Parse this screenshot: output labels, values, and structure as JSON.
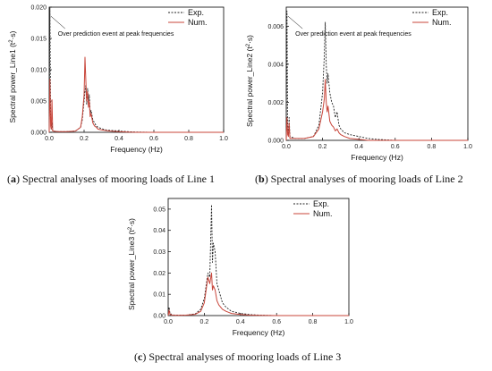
{
  "chart_data": [
    {
      "type": "line",
      "panel": "a",
      "caption_letter": "a",
      "caption_text": "Spectral analyses of mooring loads of Line 1",
      "xlabel": "Frequency (Hz)",
      "ylabel_main": "Spectral power_Line1 (t",
      "ylabel_unit": "·s)",
      "xlim": [
        0.0,
        1.0
      ],
      "ylim": [
        0.0,
        0.02
      ],
      "xticks": [
        0.0,
        0.2,
        0.4,
        0.6,
        0.8,
        1.0
      ],
      "xtick_labels": [
        "0.0",
        "0.2",
        "0.4",
        "0.6",
        "0.8",
        "1.0"
      ],
      "yticks": [
        0.0,
        0.005,
        0.01,
        0.015,
        0.02
      ],
      "ytick_labels": [
        "0.000",
        "0.005",
        "0.010",
        "0.015",
        "0.020"
      ],
      "legend_position": "top-right",
      "annotation": "Over prediction event at peak frequencies",
      "series": [
        {
          "name": "Exp.",
          "color": "#222222",
          "style": "dotted",
          "x": [
            0.0,
            0.004,
            0.008,
            0.012,
            0.016,
            0.02,
            0.05,
            0.1,
            0.15,
            0.18,
            0.19,
            0.2,
            0.205,
            0.21,
            0.215,
            0.22,
            0.225,
            0.23,
            0.235,
            0.24,
            0.25,
            0.26,
            0.27,
            0.28,
            0.3,
            0.32,
            0.35,
            0.4,
            0.45,
            0.5,
            0.6,
            1.0
          ],
          "y": [
            0.0,
            0.02,
            0.002,
            0.0005,
            0.0015,
            0.0002,
            0.0001,
            0.0001,
            0.0002,
            0.0008,
            0.002,
            0.005,
            0.0065,
            0.0075,
            0.0045,
            0.007,
            0.005,
            0.006,
            0.003,
            0.0035,
            0.002,
            0.0015,
            0.001,
            0.0008,
            0.0006,
            0.0004,
            0.0003,
            0.0002,
            0.0001,
            5e-05,
            0.0,
            0.0
          ]
        },
        {
          "name": "Num.",
          "color": "#c8453a",
          "style": "solid",
          "x": [
            0.0,
            0.004,
            0.008,
            0.012,
            0.016,
            0.02,
            0.05,
            0.1,
            0.15,
            0.18,
            0.19,
            0.2,
            0.205,
            0.21,
            0.215,
            0.22,
            0.225,
            0.23,
            0.235,
            0.24,
            0.25,
            0.26,
            0.27,
            0.28,
            0.3,
            0.32,
            0.35,
            0.4,
            0.45,
            0.5,
            0.6,
            1.0
          ],
          "y": [
            0.0,
            0.0085,
            0.001,
            0.0005,
            0.0052,
            0.0002,
            0.0001,
            0.0001,
            0.0002,
            0.0008,
            0.0025,
            0.006,
            0.012,
            0.0085,
            0.005,
            0.0065,
            0.004,
            0.005,
            0.0025,
            0.003,
            0.0015,
            0.001,
            0.0008,
            0.0005,
            0.0004,
            0.0003,
            0.0002,
            0.0001,
            5e-05,
            0.0,
            0.0,
            0.0
          ]
        }
      ]
    },
    {
      "type": "line",
      "panel": "b",
      "caption_letter": "b",
      "caption_text": "Spectral analyses of mooring loads of Line 2",
      "xlabel": "Frequency (Hz)",
      "ylabel_main": "Spectral power_Line2 (t",
      "ylabel_unit": "·s)",
      "xlim": [
        0.0,
        1.0
      ],
      "ylim": [
        0.0,
        0.007
      ],
      "xticks": [
        0.0,
        0.2,
        0.4,
        0.6,
        0.8,
        1.0
      ],
      "xtick_labels": [
        "0.0",
        "0.2",
        "0.4",
        "0.6",
        "0.8",
        "1.0"
      ],
      "yticks": [
        0.0,
        0.002,
        0.004,
        0.006
      ],
      "ytick_labels": [
        "0.000",
        "0.002",
        "0.004",
        "0.006"
      ],
      "legend_position": "top-right",
      "annotation": "Over prediction event at peak frequencies",
      "series": [
        {
          "name": "Exp.",
          "color": "#222222",
          "style": "dotted",
          "x": [
            0.0,
            0.004,
            0.008,
            0.012,
            0.016,
            0.02,
            0.05,
            0.1,
            0.15,
            0.18,
            0.2,
            0.21,
            0.215,
            0.22,
            0.225,
            0.23,
            0.24,
            0.25,
            0.26,
            0.27,
            0.28,
            0.29,
            0.3,
            0.32,
            0.35,
            0.4,
            0.45,
            0.5,
            0.6,
            1.0
          ],
          "y": [
            0.0,
            0.0068,
            0.0008,
            0.0003,
            0.0012,
            0.0002,
            0.0001,
            0.0001,
            0.0002,
            0.0008,
            0.0025,
            0.0045,
            0.0062,
            0.004,
            0.003,
            0.0035,
            0.0025,
            0.002,
            0.0018,
            0.0012,
            0.0015,
            0.0008,
            0.0006,
            0.0004,
            0.0003,
            0.0002,
            0.0001,
            5e-05,
            0.0,
            0.0
          ]
        },
        {
          "name": "Num.",
          "color": "#c8453a",
          "style": "solid",
          "x": [
            0.0,
            0.004,
            0.008,
            0.012,
            0.016,
            0.02,
            0.05,
            0.1,
            0.15,
            0.18,
            0.2,
            0.21,
            0.215,
            0.22,
            0.225,
            0.23,
            0.24,
            0.25,
            0.26,
            0.27,
            0.28,
            0.29,
            0.3,
            0.32,
            0.35,
            0.4,
            0.45,
            0.5,
            0.6,
            1.0
          ],
          "y": [
            0.0,
            0.0012,
            0.0003,
            0.0002,
            0.0009,
            0.0001,
            0.0001,
            0.0001,
            0.0002,
            0.0006,
            0.0015,
            0.0022,
            0.0032,
            0.002,
            0.0015,
            0.0018,
            0.001,
            0.0008,
            0.0007,
            0.0005,
            0.0006,
            0.0004,
            0.0003,
            0.0002,
            0.0001,
            5e-05,
            0.0,
            0.0,
            0.0,
            0.0
          ]
        }
      ]
    },
    {
      "type": "line",
      "panel": "c",
      "caption_letter": "c",
      "caption_text": "Spectral analyses of mooring loads of Line 3",
      "xlabel": "Frequency (Hz)",
      "ylabel_main": "Spectral power_Line3 (t",
      "ylabel_unit": "·s)",
      "xlim": [
        0.0,
        1.0
      ],
      "ylim": [
        0.0,
        0.055
      ],
      "xticks": [
        0.0,
        0.2,
        0.4,
        0.6,
        0.8,
        1.0
      ],
      "xtick_labels": [
        "0.0",
        "0.2",
        "0.4",
        "0.6",
        "0.8",
        "1.0"
      ],
      "yticks": [
        0.0,
        0.01,
        0.02,
        0.03,
        0.04,
        0.05
      ],
      "ytick_labels": [
        "0.00",
        "0.01",
        "0.02",
        "0.03",
        "0.04",
        "0.05"
      ],
      "legend_position": "top-right",
      "annotation": "",
      "series": [
        {
          "name": "Exp.",
          "color": "#222222",
          "style": "dotted",
          "x": [
            0.0,
            0.005,
            0.01,
            0.015,
            0.02,
            0.05,
            0.1,
            0.15,
            0.18,
            0.2,
            0.21,
            0.22,
            0.23,
            0.24,
            0.245,
            0.25,
            0.26,
            0.27,
            0.28,
            0.3,
            0.32,
            0.35,
            0.4,
            0.45,
            0.5,
            0.6,
            1.0
          ],
          "y": [
            0.0,
            0.004,
            0.001,
            0.0008,
            0.0003,
            0.0002,
            0.0002,
            0.0008,
            0.003,
            0.008,
            0.014,
            0.02,
            0.018,
            0.052,
            0.025,
            0.034,
            0.03,
            0.015,
            0.012,
            0.006,
            0.004,
            0.002,
            0.001,
            0.0005,
            0.0002,
            0.0,
            0.0
          ]
        },
        {
          "name": "Num.",
          "color": "#c8453a",
          "style": "solid",
          "x": [
            0.0,
            0.005,
            0.01,
            0.015,
            0.02,
            0.05,
            0.1,
            0.15,
            0.18,
            0.2,
            0.21,
            0.22,
            0.23,
            0.24,
            0.245,
            0.25,
            0.26,
            0.27,
            0.28,
            0.3,
            0.32,
            0.35,
            0.4,
            0.45,
            0.5,
            0.6,
            1.0
          ],
          "y": [
            0.0,
            0.0025,
            0.0006,
            0.0004,
            0.0002,
            0.0001,
            0.0002,
            0.0006,
            0.002,
            0.006,
            0.012,
            0.018,
            0.015,
            0.02,
            0.012,
            0.014,
            0.012,
            0.007,
            0.005,
            0.003,
            0.002,
            0.001,
            0.0005,
            0.0002,
            0.0001,
            0.0,
            0.0
          ]
        }
      ]
    }
  ]
}
